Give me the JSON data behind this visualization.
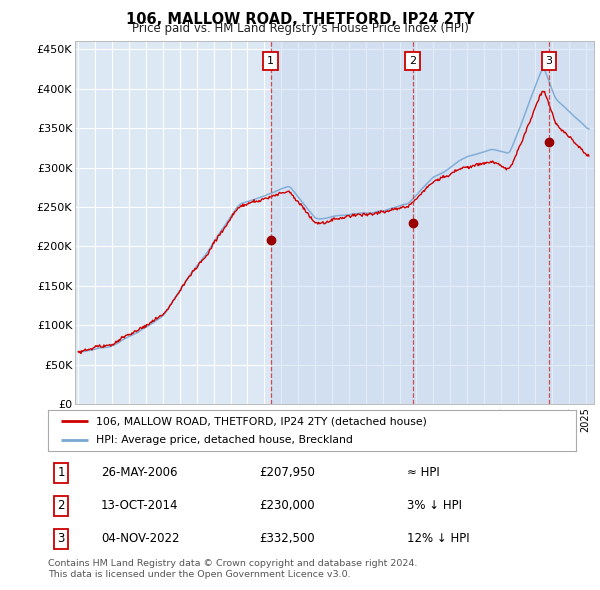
{
  "title": "106, MALLOW ROAD, THETFORD, IP24 2TY",
  "subtitle": "Price paid vs. HM Land Registry's House Price Index (HPI)",
  "ylabel_ticks": [
    "£0",
    "£50K",
    "£100K",
    "£150K",
    "£200K",
    "£250K",
    "£300K",
    "£350K",
    "£400K",
    "£450K"
  ],
  "ytick_values": [
    0,
    50000,
    100000,
    150000,
    200000,
    250000,
    300000,
    350000,
    400000,
    450000
  ],
  "ylim": [
    0,
    460000
  ],
  "xlim_start": 1994.8,
  "xlim_end": 2025.5,
  "background_color": "#dde8f5",
  "plot_bg_color": "#dde8f5",
  "grid_color": "#ffffff",
  "transactions": [
    {
      "label": "1",
      "date_num": 2006.38,
      "price": 207950
    },
    {
      "label": "2",
      "date_num": 2014.78,
      "price": 230000
    },
    {
      "label": "3",
      "date_num": 2022.84,
      "price": 332500
    }
  ],
  "legend_line1": "106, MALLOW ROAD, THETFORD, IP24 2TY (detached house)",
  "legend_line2": "HPI: Average price, detached house, Breckland",
  "table_rows": [
    {
      "num": "1",
      "date": "26-MAY-2006",
      "price": "£207,950",
      "rel": "≈ HPI"
    },
    {
      "num": "2",
      "date": "13-OCT-2014",
      "price": "£230,000",
      "rel": "3% ↓ HPI"
    },
    {
      "num": "3",
      "date": "04-NOV-2022",
      "price": "£332,500",
      "rel": "12% ↓ HPI"
    }
  ],
  "footnote": "Contains HM Land Registry data © Crown copyright and database right 2024.\nThis data is licensed under the Open Government Licence v3.0.",
  "line_color_red": "#cc0000",
  "line_color_blue": "#7aa8d4",
  "vline_color_red": "#cc3333",
  "shade_color": "#c8d8ee"
}
